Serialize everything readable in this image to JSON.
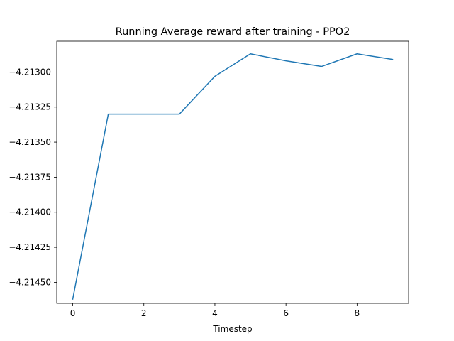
{
  "chart_data": {
    "type": "line",
    "title": "Running Average reward after training - PPO2",
    "xlabel": "Timestep",
    "ylabel": "",
    "xlim": [
      -0.45,
      9.45
    ],
    "ylim": [
      -4.21465,
      -4.21278
    ],
    "x_ticks": [
      0,
      2,
      4,
      6,
      8
    ],
    "y_ticks": [
      -4.2145,
      -4.21425,
      -4.214,
      -4.21375,
      -4.2135,
      -4.21325,
      -4.213
    ],
    "y_tick_labels": [
      "−4.21450",
      "−4.21425",
      "−4.21400",
      "−4.21375",
      "−4.21350",
      "−4.21325",
      "−4.21300"
    ],
    "grid": false,
    "legend": "none",
    "series": [
      {
        "color": "#1f77b4",
        "x": [
          0,
          1,
          2,
          3,
          4,
          5,
          6,
          7,
          8,
          9
        ],
        "values": [
          -4.21462,
          -4.2133,
          -4.2133,
          -4.2133,
          -4.21303,
          -4.21287,
          -4.21292,
          -4.21296,
          -4.21287,
          -4.21291
        ]
      }
    ]
  }
}
